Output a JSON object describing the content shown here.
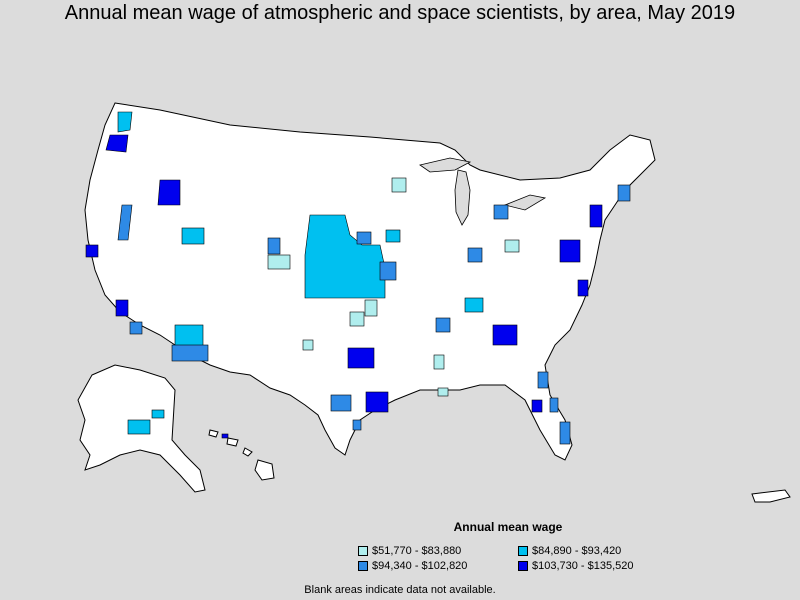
{
  "title": "Annual mean wage of atmospheric and space scientists, by area, May 2019",
  "legend": {
    "title": "Annual mean wage",
    "items": [
      {
        "label": "$51,770 - $83,880",
        "color": "#b0eeee"
      },
      {
        "label": "$84,890 - $93,420",
        "color": "#00c0f0"
      },
      {
        "label": "$94,340 - $102,820",
        "color": "#2e8ae6"
      },
      {
        "label": "$103,730 - $135,520",
        "color": "#0000ee"
      }
    ]
  },
  "footnote": "Blank areas indicate data not available.",
  "colors": {
    "background": "#dcdcdc",
    "land": "#ffffff",
    "border": "#000000"
  }
}
